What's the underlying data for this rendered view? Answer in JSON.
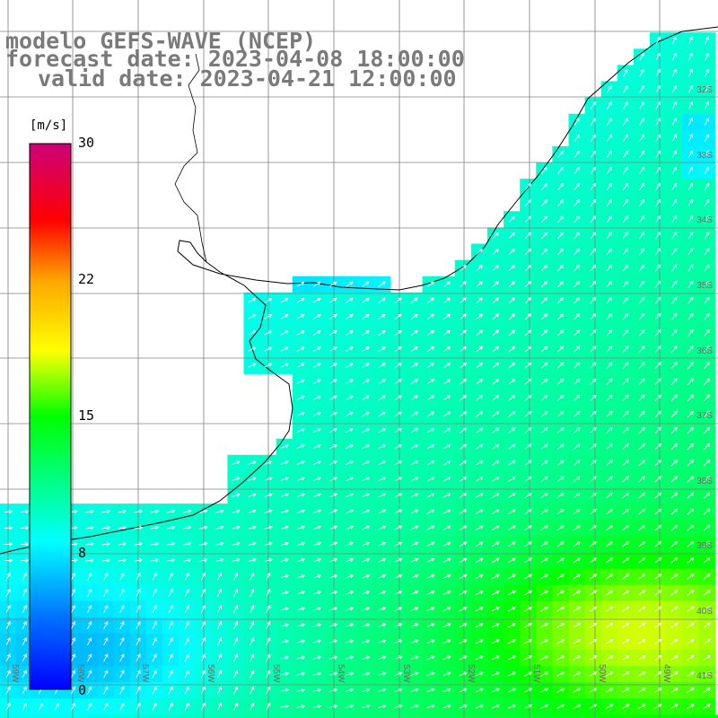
{
  "title": {
    "line1": "modelo GEFS-WAVE (NCEP)",
    "line2": "forecast date: 2023-04-08 18:00:00",
    "line3": "valid date: 2023-04-21 12:00:00"
  },
  "legend": {
    "unit": "[m/s]",
    "ticks": [
      "30",
      "22",
      "15",
      "8",
      "0"
    ],
    "range": [
      0,
      30
    ],
    "colors": [
      "#0000ff",
      "#00a0ff",
      "#00ffff",
      "#00ff00",
      "#ffff00",
      "#ffa500",
      "#ff0000",
      "#cc0077"
    ]
  },
  "lat_labels": [
    "32S",
    "33S",
    "34S",
    "35S",
    "36S",
    "37S",
    "38S",
    "39S",
    "40S",
    "41S"
  ],
  "lon_labels": [
    "59W",
    "58W",
    "57W",
    "56W",
    "55W",
    "54W",
    "53W",
    "52W",
    "51W",
    "50W",
    "49W"
  ],
  "colors": {
    "land": "#ffffff",
    "grid": "#808080",
    "coast": "#000000",
    "arrow": "#ffffff",
    "text": "#7a7a7a"
  }
}
